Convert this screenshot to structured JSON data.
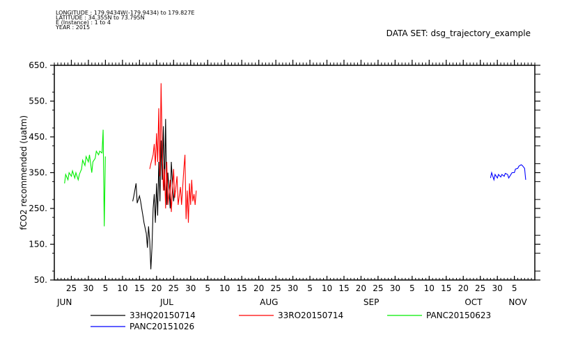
{
  "header": {
    "lines": [
      "LONGITUDE : 179.9434W(-179.9434) to 179.827E",
      "LATITUDE : 34.355N to 73.795N",
      "E (Instance) : 1 to 4",
      "YEAR : 2015"
    ],
    "dataset": "DATA SET: dsg_trajectory_example"
  },
  "chart_data": {
    "type": "line",
    "ylabel": "fCO2 recommended (uatm)",
    "ylim": [
      50,
      650
    ],
    "yticks": [
      50,
      150,
      250,
      350,
      450,
      550,
      650
    ],
    "ytick_labels": [
      "50.",
      "150.",
      "250.",
      "350.",
      "450.",
      "550.",
      "650."
    ],
    "x_date_range": [
      "2015-06-20",
      "2015-11-08"
    ],
    "x_day_ticks": [
      {
        "date": "2015-06-25",
        "label": "25"
      },
      {
        "date": "2015-06-30",
        "label": "30"
      },
      {
        "date": "2015-07-05",
        "label": "5"
      },
      {
        "date": "2015-07-10",
        "label": "10"
      },
      {
        "date": "2015-07-15",
        "label": "15"
      },
      {
        "date": "2015-07-20",
        "label": "20"
      },
      {
        "date": "2015-07-25",
        "label": "25"
      },
      {
        "date": "2015-07-30",
        "label": "30"
      },
      {
        "date": "2015-08-04",
        "label": "5"
      },
      {
        "date": "2015-08-09",
        "label": "10"
      },
      {
        "date": "2015-08-14",
        "label": "15"
      },
      {
        "date": "2015-08-19",
        "label": "20"
      },
      {
        "date": "2015-08-24",
        "label": "25"
      },
      {
        "date": "2015-08-29",
        "label": "30"
      },
      {
        "date": "2015-09-03",
        "label": "5"
      },
      {
        "date": "2015-09-08",
        "label": "10"
      },
      {
        "date": "2015-09-13",
        "label": "15"
      },
      {
        "date": "2015-09-18",
        "label": "20"
      },
      {
        "date": "2015-09-23",
        "label": "25"
      },
      {
        "date": "2015-09-28",
        "label": "30"
      },
      {
        "date": "2015-10-03",
        "label": "5"
      },
      {
        "date": "2015-10-08",
        "label": "10"
      },
      {
        "date": "2015-10-13",
        "label": "15"
      },
      {
        "date": "2015-10-18",
        "label": "20"
      },
      {
        "date": "2015-10-23",
        "label": "25"
      },
      {
        "date": "2015-10-28",
        "label": "30"
      },
      {
        "date": "2015-11-02",
        "label": "5"
      }
    ],
    "x_month_labels": [
      {
        "date": "2015-06-23",
        "label": "JUN"
      },
      {
        "date": "2015-07-23",
        "label": "JUL"
      },
      {
        "date": "2015-08-22",
        "label": "AUG"
      },
      {
        "date": "2015-09-21",
        "label": "SEP"
      },
      {
        "date": "2015-10-21",
        "label": "OCT"
      },
      {
        "date": "2015-11-03",
        "label": "NOV"
      }
    ],
    "series": [
      {
        "name": "33HQ20150714",
        "color": "#000000",
        "points": [
          [
            "2015-07-13",
            270
          ],
          [
            "2015-07-13",
            285
          ],
          [
            "2015-07-14",
            320
          ],
          [
            "2015-07-14",
            265
          ],
          [
            "2015-07-15",
            285
          ],
          [
            "2015-07-15",
            270
          ],
          [
            "2015-07-15",
            250
          ],
          [
            "2015-07-16",
            230
          ],
          [
            "2015-07-16",
            210
          ],
          [
            "2015-07-17",
            180
          ],
          [
            "2015-07-17",
            140
          ],
          [
            "2015-07-17",
            200
          ],
          [
            "2015-07-18",
            160
          ],
          [
            "2015-07-18",
            80
          ],
          [
            "2015-07-18",
            140
          ],
          [
            "2015-07-19",
            250
          ],
          [
            "2015-07-19",
            290
          ],
          [
            "2015-07-19",
            210
          ],
          [
            "2015-07-20",
            320
          ],
          [
            "2015-07-20",
            230
          ],
          [
            "2015-07-20",
            380
          ],
          [
            "2015-07-21",
            270
          ],
          [
            "2015-07-21",
            440
          ],
          [
            "2015-07-21",
            330
          ],
          [
            "2015-07-22",
            480
          ],
          [
            "2015-07-22",
            300
          ],
          [
            "2015-07-22",
            500
          ],
          [
            "2015-07-23",
            260
          ],
          [
            "2015-07-23",
            350
          ],
          [
            "2015-07-24",
            250
          ],
          [
            "2015-07-24",
            380
          ],
          [
            "2015-07-25",
            270
          ],
          [
            "2015-07-25",
            300
          ]
        ]
      },
      {
        "name": "33RO20150714",
        "color": "#ff0000",
        "points": [
          [
            "2015-07-18",
            360
          ],
          [
            "2015-07-18",
            375
          ],
          [
            "2015-07-19",
            400
          ],
          [
            "2015-07-19",
            430
          ],
          [
            "2015-07-19",
            370
          ],
          [
            "2015-07-20",
            460
          ],
          [
            "2015-07-20",
            380
          ],
          [
            "2015-07-20",
            530
          ],
          [
            "2015-07-21",
            340
          ],
          [
            "2015-07-21",
            600
          ],
          [
            "2015-07-21",
            420
          ],
          [
            "2015-07-22",
            300
          ],
          [
            "2015-07-22",
            360
          ],
          [
            "2015-07-22",
            250
          ],
          [
            "2015-07-23",
            380
          ],
          [
            "2015-07-23",
            260
          ],
          [
            "2015-07-24",
            330
          ],
          [
            "2015-07-24",
            240
          ],
          [
            "2015-07-24",
            300
          ],
          [
            "2015-07-25",
            360
          ],
          [
            "2015-07-25",
            280
          ],
          [
            "2015-07-26",
            340
          ],
          [
            "2015-07-26",
            260
          ],
          [
            "2015-07-27",
            310
          ],
          [
            "2015-07-27",
            260
          ],
          [
            "2015-07-28",
            360
          ],
          [
            "2015-07-28",
            400
          ],
          [
            "2015-07-28",
            220
          ],
          [
            "2015-07-29",
            300
          ],
          [
            "2015-07-29",
            210
          ],
          [
            "2015-07-29",
            320
          ],
          [
            "2015-07-30",
            260
          ],
          [
            "2015-07-30",
            330
          ],
          [
            "2015-07-30",
            270
          ],
          [
            "2015-07-31",
            290
          ],
          [
            "2015-07-31",
            260
          ],
          [
            "2015-07-31",
            300
          ]
        ]
      },
      {
        "name": "PANC20150623",
        "color": "#00ee00",
        "points": [
          [
            "2015-06-23",
            320
          ],
          [
            "2015-06-23",
            345
          ],
          [
            "2015-06-24",
            330
          ],
          [
            "2015-06-24",
            350
          ],
          [
            "2015-06-25",
            340
          ],
          [
            "2015-06-25",
            355
          ],
          [
            "2015-06-26",
            335
          ],
          [
            "2015-06-26",
            350
          ],
          [
            "2015-06-27",
            330
          ],
          [
            "2015-06-27",
            345
          ],
          [
            "2015-06-28",
            360
          ],
          [
            "2015-06-28",
            385
          ],
          [
            "2015-06-29",
            370
          ],
          [
            "2015-06-29",
            395
          ],
          [
            "2015-06-30",
            380
          ],
          [
            "2015-06-30",
            400
          ],
          [
            "2015-07-01",
            350
          ],
          [
            "2015-07-01",
            380
          ],
          [
            "2015-07-02",
            390
          ],
          [
            "2015-07-02",
            410
          ],
          [
            "2015-07-03",
            400
          ],
          [
            "2015-07-03",
            410
          ],
          [
            "2015-07-04",
            405
          ],
          [
            "2015-07-04",
            470
          ],
          [
            "2015-07-04",
            200
          ],
          [
            "2015-07-04",
            395
          ]
        ]
      },
      {
        "name": "PANC20151026",
        "color": "#0000ff",
        "points": [
          [
            "2015-10-26",
            335
          ],
          [
            "2015-10-26",
            350
          ],
          [
            "2015-10-27",
            330
          ],
          [
            "2015-10-27",
            345
          ],
          [
            "2015-10-28",
            335
          ],
          [
            "2015-10-28",
            345
          ],
          [
            "2015-10-29",
            338
          ],
          [
            "2015-10-29",
            345
          ],
          [
            "2015-10-30",
            340
          ],
          [
            "2015-10-30",
            348
          ],
          [
            "2015-10-31",
            345
          ],
          [
            "2015-10-31",
            335
          ],
          [
            "2015-11-01",
            345
          ],
          [
            "2015-11-01",
            350
          ],
          [
            "2015-11-02",
            350
          ],
          [
            "2015-11-02",
            360
          ],
          [
            "2015-11-03",
            362
          ],
          [
            "2015-11-03",
            368
          ],
          [
            "2015-11-04",
            372
          ],
          [
            "2015-11-04",
            370
          ],
          [
            "2015-11-05",
            362
          ],
          [
            "2015-11-05",
            330
          ]
        ]
      }
    ],
    "legend": {
      "placement": "bottom",
      "entries": [
        "33HQ20150714",
        "33RO20150714",
        "PANC20150623",
        "PANC20151026"
      ]
    }
  }
}
